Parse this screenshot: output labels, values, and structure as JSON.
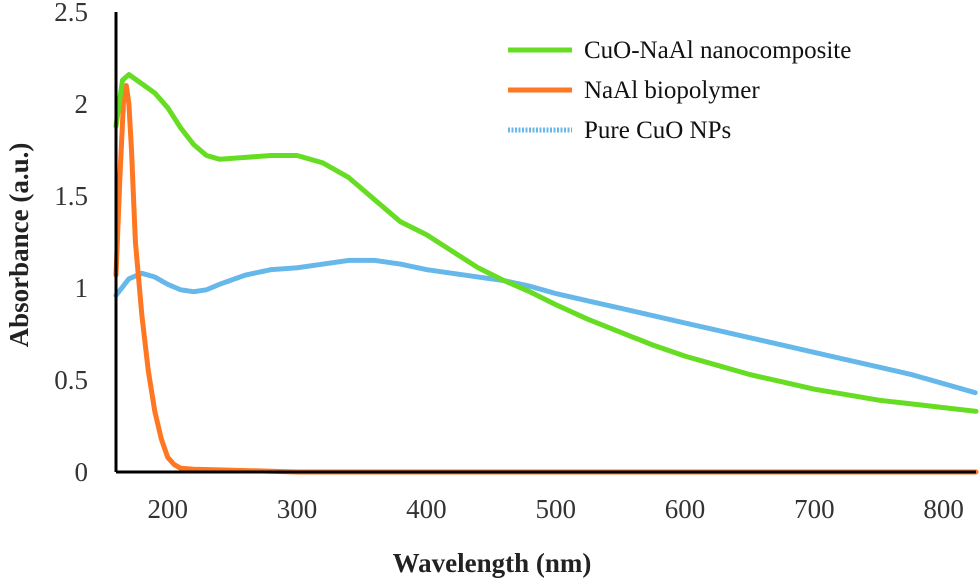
{
  "chart_data": {
    "type": "line",
    "title": "",
    "xlabel": "Wavelength (nm)",
    "ylabel": "Absorbance (a.u.)",
    "xlim": [
      160,
      825
    ],
    "ylim": [
      0,
      2.5
    ],
    "xticks": [
      200,
      300,
      400,
      500,
      600,
      700,
      800
    ],
    "xtick_labels": [
      "200",
      "300",
      "400",
      "500",
      "600",
      "700",
      "800"
    ],
    "yticks": [
      0,
      0.5,
      1,
      1.5,
      2,
      2.5
    ],
    "ytick_labels": [
      "0",
      "0.5",
      "1",
      "1.5",
      "2",
      "2.5"
    ],
    "grid": false,
    "legend_position": "top-right",
    "series": [
      {
        "name": "CuO-NaAl nanocomposite",
        "color": "#66dd22",
        "x": [
          160,
          165,
          170,
          180,
          190,
          200,
          210,
          220,
          230,
          240,
          260,
          280,
          300,
          320,
          340,
          360,
          380,
          400,
          420,
          440,
          460,
          480,
          500,
          525,
          550,
          575,
          600,
          625,
          650,
          675,
          700,
          725,
          750,
          775,
          800,
          825
        ],
        "y": [
          1.88,
          2.13,
          2.16,
          2.11,
          2.06,
          1.98,
          1.87,
          1.78,
          1.72,
          1.7,
          1.71,
          1.72,
          1.72,
          1.68,
          1.6,
          1.48,
          1.36,
          1.29,
          1.2,
          1.11,
          1.04,
          0.98,
          0.91,
          0.83,
          0.76,
          0.69,
          0.63,
          0.58,
          0.53,
          0.49,
          0.45,
          0.42,
          0.39,
          0.37,
          0.35,
          0.33
        ]
      },
      {
        "name": "NaAl biopolymer",
        "color": "#ff7722",
        "x": [
          160,
          163,
          166,
          168,
          170,
          172,
          175,
          180,
          185,
          190,
          195,
          200,
          205,
          210,
          220,
          250,
          300,
          400,
          500,
          600,
          700,
          800,
          825
        ],
        "y": [
          1.07,
          1.6,
          2.05,
          2.1,
          2.0,
          1.75,
          1.25,
          0.85,
          0.55,
          0.33,
          0.18,
          0.08,
          0.04,
          0.02,
          0.015,
          0.01,
          0.0,
          0.0,
          0.0,
          0.0,
          0.0,
          0.0,
          0.0
        ]
      },
      {
        "name": "Pure CuO NPs",
        "color": "#66b8ea",
        "x": [
          160,
          170,
          180,
          190,
          200,
          210,
          220,
          230,
          240,
          260,
          280,
          300,
          320,
          340,
          360,
          380,
          400,
          420,
          440,
          460,
          480,
          500,
          525,
          550,
          575,
          600,
          625,
          650,
          675,
          700,
          725,
          750,
          775,
          800,
          825
        ],
        "y": [
          0.96,
          1.05,
          1.08,
          1.06,
          1.02,
          0.99,
          0.98,
          0.99,
          1.02,
          1.07,
          1.1,
          1.11,
          1.13,
          1.15,
          1.15,
          1.13,
          1.1,
          1.08,
          1.06,
          1.04,
          1.01,
          0.97,
          0.93,
          0.89,
          0.85,
          0.81,
          0.77,
          0.73,
          0.69,
          0.65,
          0.61,
          0.57,
          0.53,
          0.48,
          0.43
        ]
      }
    ]
  }
}
